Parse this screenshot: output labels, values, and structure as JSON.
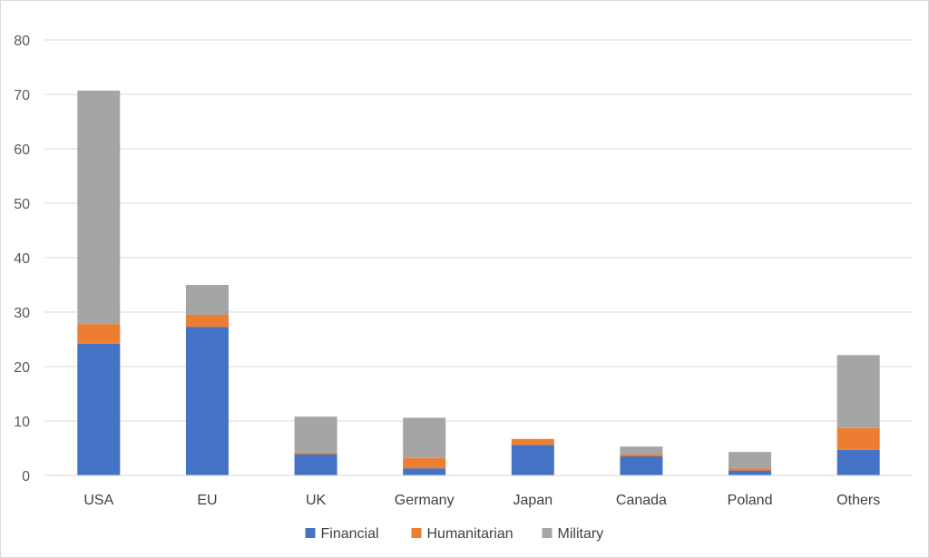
{
  "chart_data": {
    "type": "bar",
    "stacked": true,
    "title": "",
    "xlabel": "",
    "ylabel": "",
    "ylim": [
      0,
      80
    ],
    "yticks": [
      0,
      10,
      20,
      30,
      40,
      50,
      60,
      70,
      80
    ],
    "grid": true,
    "legend_position": "bottom",
    "categories": [
      "USA",
      "EU",
      "UK",
      "Germany",
      "Japan",
      "Canada",
      "Poland",
      "Others"
    ],
    "series": [
      {
        "name": "Financial",
        "color": "#4472C4",
        "values": [
          24.2,
          27.3,
          3.9,
          1.3,
          5.6,
          3.5,
          0.9,
          4.7
        ]
      },
      {
        "name": "Humanitarian",
        "color": "#ED7D31",
        "values": [
          3.6,
          2.2,
          0.3,
          1.9,
          1.1,
          0.4,
          0.4,
          4.0
        ]
      },
      {
        "name": "Military",
        "color": "#A5A5A5",
        "values": [
          42.9,
          5.5,
          6.6,
          7.4,
          0.0,
          1.4,
          3.0,
          13.4
        ]
      }
    ]
  }
}
